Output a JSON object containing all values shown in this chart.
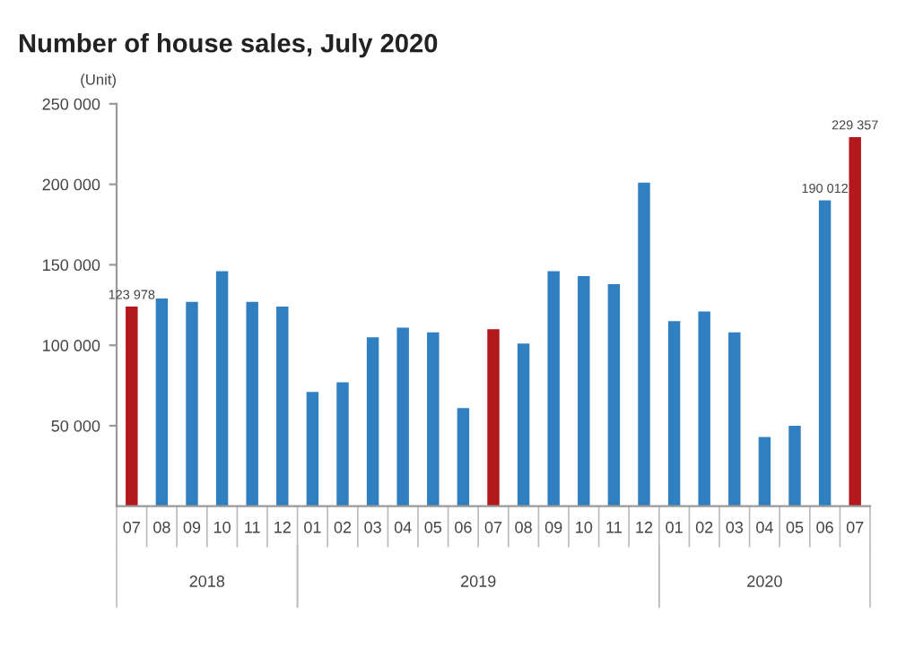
{
  "chart_data": {
    "type": "bar",
    "title": "Number of house sales, July 2020",
    "ylabel": "(Unit)",
    "categories": [
      "07",
      "08",
      "09",
      "10",
      "11",
      "12",
      "01",
      "02",
      "03",
      "04",
      "05",
      "06",
      "07",
      "08",
      "09",
      "10",
      "11",
      "12",
      "01",
      "02",
      "03",
      "04",
      "05",
      "06",
      "07"
    ],
    "values": [
      123978,
      129000,
      127000,
      146000,
      127000,
      124000,
      71000,
      77000,
      105000,
      111000,
      108000,
      61000,
      110000,
      101000,
      146000,
      143000,
      138000,
      201000,
      115000,
      121000,
      108000,
      43000,
      50000,
      190012,
      229357
    ],
    "colors": [
      "#b3191c",
      "#2f7fc1",
      "#2f7fc1",
      "#2f7fc1",
      "#2f7fc1",
      "#2f7fc1",
      "#2f7fc1",
      "#2f7fc1",
      "#2f7fc1",
      "#2f7fc1",
      "#2f7fc1",
      "#2f7fc1",
      "#b3191c",
      "#2f7fc1",
      "#2f7fc1",
      "#2f7fc1",
      "#2f7fc1",
      "#2f7fc1",
      "#2f7fc1",
      "#2f7fc1",
      "#2f7fc1",
      "#2f7fc1",
      "#2f7fc1",
      "#2f7fc1",
      "#b3191c"
    ],
    "value_labels": [
      "123 978",
      null,
      null,
      null,
      null,
      null,
      null,
      null,
      null,
      null,
      null,
      null,
      null,
      null,
      null,
      null,
      null,
      null,
      null,
      null,
      null,
      null,
      null,
      "190 012",
      "229 357"
    ],
    "ylim": [
      0,
      250000
    ],
    "yticks": [
      {
        "value": 50000,
        "label": "50 000"
      },
      {
        "value": 100000,
        "label": "100 000"
      },
      {
        "value": 150000,
        "label": "150 000"
      },
      {
        "value": 200000,
        "label": "200 000"
      },
      {
        "value": 250000,
        "label": "250 000"
      }
    ],
    "annotations": [
      "2018",
      "2019",
      "2020"
    ],
    "grid": false,
    "legend": false
  }
}
